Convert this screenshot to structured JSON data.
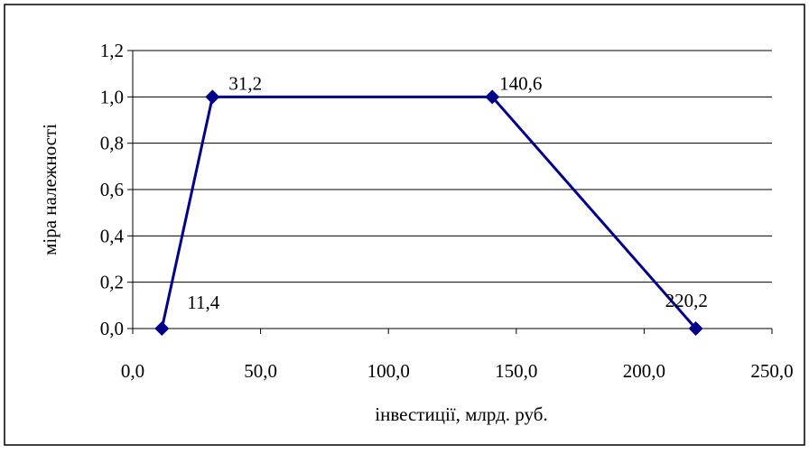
{
  "chart_data": {
    "type": "line",
    "title": "",
    "xlabel": "інвестиції, млрд. руб.",
    "ylabel": "міра належності",
    "xlim": [
      0,
      250
    ],
    "ylim": [
      0,
      1.2
    ],
    "x_ticks": [
      "0,0",
      "50,0",
      "100,0",
      "150,0",
      "200,0",
      "250,0"
    ],
    "y_ticks": [
      "0,0",
      "0,2",
      "0,4",
      "0,6",
      "0,8",
      "1,0",
      "1,2"
    ],
    "grid": "horizontal",
    "legend": "none",
    "series": [
      {
        "x": [
          11.4,
          31.2,
          140.6,
          220.2
        ],
        "y": [
          0,
          1,
          1,
          0
        ],
        "labels": [
          "11,4",
          "31,2",
          "140,6",
          "220,2"
        ],
        "color": "#00008b"
      }
    ]
  }
}
